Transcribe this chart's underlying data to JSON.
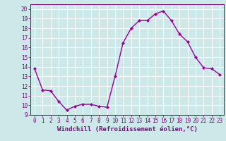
{
  "x": [
    0,
    1,
    2,
    3,
    4,
    5,
    6,
    7,
    8,
    9,
    10,
    11,
    12,
    13,
    14,
    15,
    16,
    17,
    18,
    19,
    20,
    21,
    22,
    23
  ],
  "y": [
    13.8,
    11.6,
    11.5,
    10.4,
    9.5,
    9.9,
    10.1,
    10.1,
    9.9,
    9.8,
    13.0,
    16.5,
    18.0,
    18.8,
    18.8,
    19.5,
    19.8,
    18.8,
    17.4,
    16.6,
    15.0,
    13.9,
    13.8,
    13.2
  ],
  "line_color": "#990099",
  "marker": "D",
  "markersize": 2.2,
  "linewidth": 1.0,
  "xlabel": "Windchill (Refroidissement éolien,°C)",
  "xlabel_fontsize": 6.5,
  "ylim": [
    9,
    20.5
  ],
  "xlim": [
    -0.5,
    23.5
  ],
  "yticks": [
    9,
    10,
    11,
    12,
    13,
    14,
    15,
    16,
    17,
    18,
    19,
    20
  ],
  "xticks": [
    0,
    1,
    2,
    3,
    4,
    5,
    6,
    7,
    8,
    9,
    10,
    11,
    12,
    13,
    14,
    15,
    16,
    17,
    18,
    19,
    20,
    21,
    22,
    23
  ],
  "background_color": "#cce8e8",
  "grid_color": "#ffffff",
  "tick_fontsize": 5.5,
  "label_color": "#880088"
}
